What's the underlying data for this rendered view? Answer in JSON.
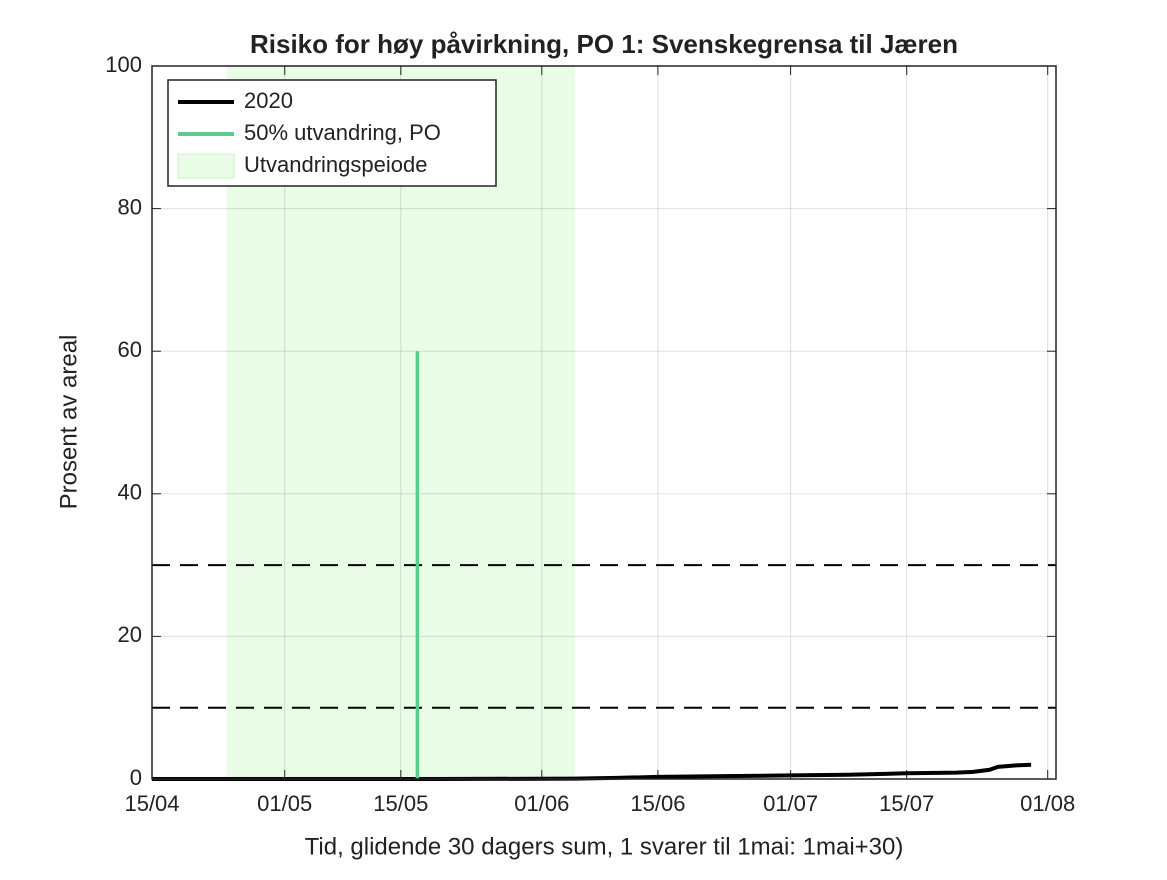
{
  "chart_data": {
    "type": "line",
    "title": "Risiko for høy påvirkning, PO 1: Svenskegrensa til Jæren",
    "xlabel": "Tid, glidende 30 dagers sum, 1 svarer til 1mai: 1mai+30)",
    "ylabel": "Prosent av areal",
    "xlim": [
      106,
      215
    ],
    "xticks": [
      {
        "value": 106,
        "label": "15/04"
      },
      {
        "value": 122,
        "label": "01/05"
      },
      {
        "value": 136,
        "label": "15/05"
      },
      {
        "value": 153,
        "label": "01/06"
      },
      {
        "value": 167,
        "label": "15/06"
      },
      {
        "value": 183,
        "label": "01/07"
      },
      {
        "value": 197,
        "label": "15/07"
      },
      {
        "value": 214,
        "label": "01/08"
      }
    ],
    "ylim": [
      0,
      100
    ],
    "yticks": [
      0,
      20,
      40,
      60,
      80,
      100
    ],
    "grid": true,
    "legend": "upper left",
    "span": {
      "name": "Utvandringspeiode",
      "color": "#e8fce6",
      "x": [
        115,
        157
      ]
    },
    "reference_lines": [
      10,
      30
    ],
    "series": [
      {
        "name": "2020",
        "color": "#000000",
        "x": [
          106,
          120,
          140,
          157,
          162,
          167,
          175,
          183,
          190,
          197,
          203,
          205,
          207,
          208,
          210,
          212
        ],
        "values": [
          0,
          0,
          0,
          0.05,
          0.15,
          0.3,
          0.4,
          0.5,
          0.6,
          0.8,
          0.9,
          1.0,
          1.3,
          1.7,
          1.9,
          2.0
        ]
      },
      {
        "name": "50% utvandring, PO",
        "color": "#5ccb8c",
        "x": [
          138,
          138
        ],
        "values": [
          0,
          60
        ]
      }
    ]
  }
}
